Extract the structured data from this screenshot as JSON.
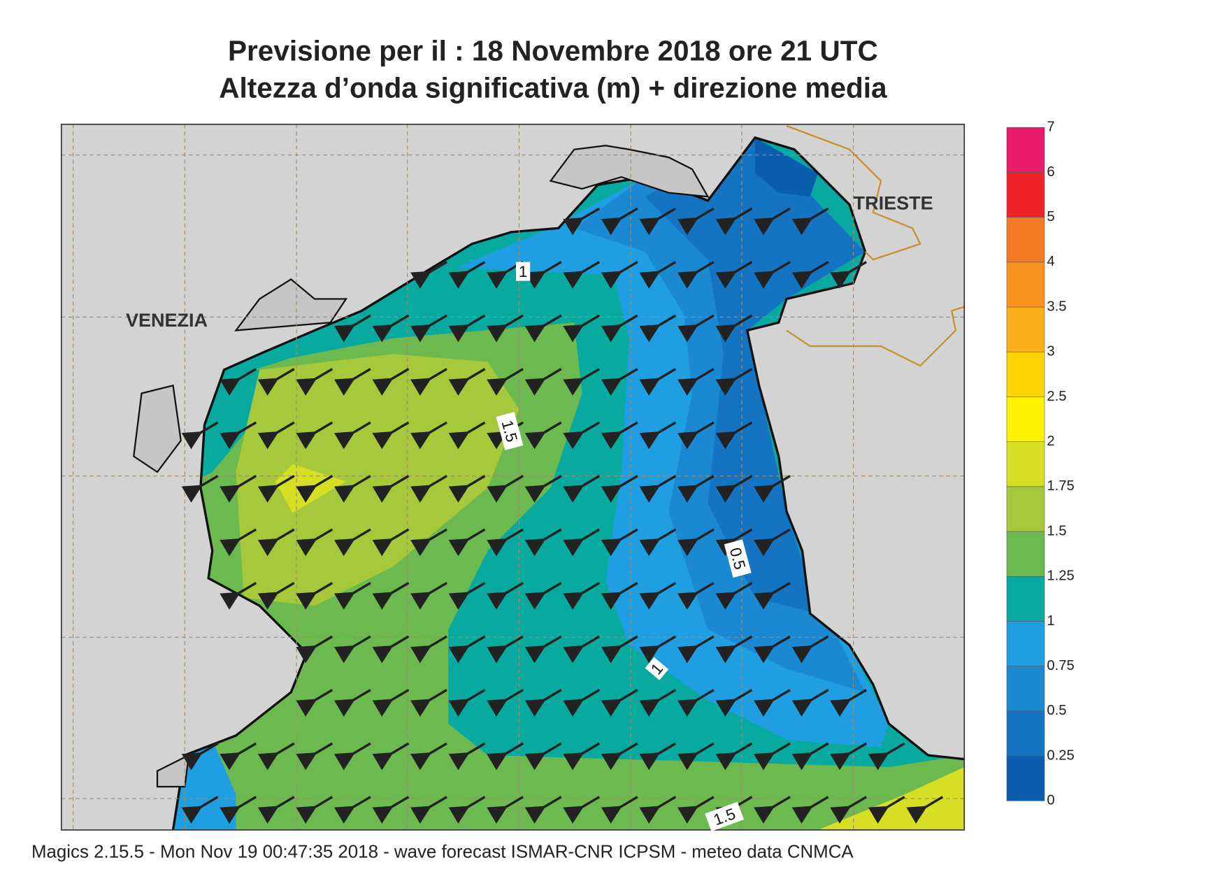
{
  "title": [
    "Previsione per il  :  18 Novembre  2018   ore 21 UTC",
    "Altezza d’onda significativa (m) + direzione media"
  ],
  "places": [
    "VENEZIA",
    "TRIESTE"
  ],
  "contour_labels": [
    1,
    1.5,
    0.5,
    1,
    1.5
  ],
  "colorbar": {
    "levels": [
      0,
      0.25,
      0.5,
      0.75,
      1,
      1.25,
      1.5,
      1.75,
      2,
      2.5,
      3,
      3.5,
      4,
      5,
      6,
      7
    ],
    "colors": [
      "#0a5ead",
      "#1474c2",
      "#1a89d2",
      "#1f9fe2",
      "#08aaa0",
      "#6cba4f",
      "#a5c93a",
      "#d6df23",
      "#fff200",
      "#ffd400",
      "#fbb01a",
      "#f7931e",
      "#f47a21",
      "#ee2428",
      "#ec1a6b"
    ]
  },
  "footer": "Magics 2.15.5 - Mon Nov 19 00:47:35 2018 - wave forecast  ISMAR-CNR  ICPSM - meteo data   CNMCA"
}
